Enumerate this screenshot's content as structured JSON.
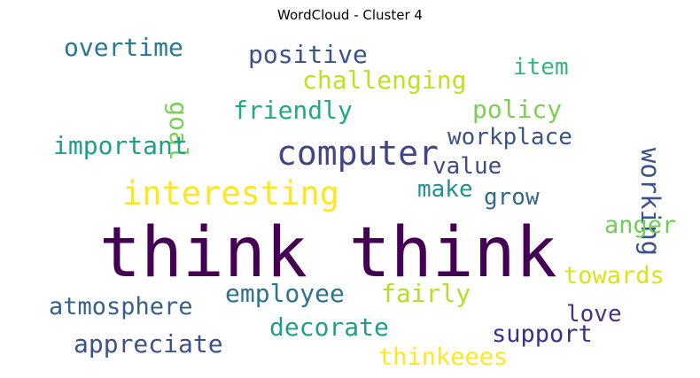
{
  "chart_data": {
    "type": "wordcloud",
    "title": "WordCloud - Cluster 4",
    "words": [
      {
        "text": "think think",
        "color": "#440154"
      },
      {
        "text": "computer",
        "color": "#414487"
      },
      {
        "text": "interesting",
        "color": "#fde725"
      },
      {
        "text": "overtime",
        "color": "#2a788e"
      },
      {
        "text": "positive",
        "color": "#3b528b"
      },
      {
        "text": "challenging",
        "color": "#c2df23"
      },
      {
        "text": "item",
        "color": "#35b779"
      },
      {
        "text": "goal",
        "color": "#7ad151"
      },
      {
        "text": "friendly",
        "color": "#22a884"
      },
      {
        "text": "policy",
        "color": "#7ad151"
      },
      {
        "text": "working",
        "color": "#3b528b"
      },
      {
        "text": "important",
        "color": "#1f9e89"
      },
      {
        "text": "workplace",
        "color": "#3b528b"
      },
      {
        "text": "value",
        "color": "#3e4a89"
      },
      {
        "text": "make",
        "color": "#21918c"
      },
      {
        "text": "grow",
        "color": "#31688e"
      },
      {
        "text": "anger",
        "color": "#6ece58"
      },
      {
        "text": "towards",
        "color": "#dde318"
      },
      {
        "text": "employee",
        "color": "#2c728e"
      },
      {
        "text": "fairly",
        "color": "#b5de2b"
      },
      {
        "text": "atmosphere",
        "color": "#355f8d"
      },
      {
        "text": "love",
        "color": "#46327e"
      },
      {
        "text": "decorate",
        "color": "#1f9e89"
      },
      {
        "text": "support",
        "color": "#3e2f80"
      },
      {
        "text": "appreciate",
        "color": "#3b528b"
      },
      {
        "text": "thinkeees",
        "color": "#fde725"
      }
    ]
  }
}
